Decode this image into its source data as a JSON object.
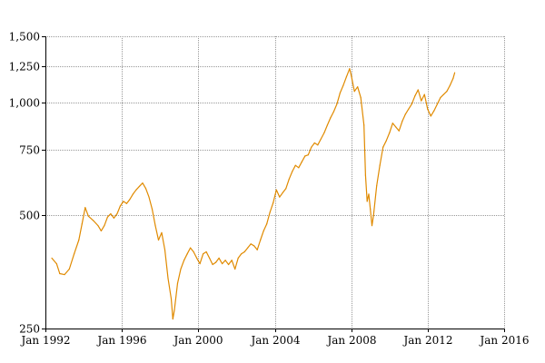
{
  "chart_data": {
    "type": "line",
    "title": "",
    "xlabel": "",
    "ylabel": "",
    "grid": true,
    "legend": "none",
    "y_scale": "log",
    "ylim": [
      250,
      1500
    ],
    "xlim": [
      "1992-01",
      "2016-01"
    ],
    "y_ticks": [
      {
        "value": 250,
        "label": "250"
      },
      {
        "value": 500,
        "label": "500"
      },
      {
        "value": 750,
        "label": "750"
      },
      {
        "value": 1000,
        "label": "1,000"
      },
      {
        "value": 1250,
        "label": "1,250"
      },
      {
        "value": 1500,
        "label": "1,500"
      }
    ],
    "x_ticks": [
      {
        "value": "1992-01",
        "label": "Jan 1992"
      },
      {
        "value": "1996-01",
        "label": "Jan 1996"
      },
      {
        "value": "2000-01",
        "label": "Jan 2000"
      },
      {
        "value": "2004-01",
        "label": "Jan 2004"
      },
      {
        "value": "2008-01",
        "label": "Jan 2008"
      },
      {
        "value": "2012-01",
        "label": "Jan 2012"
      },
      {
        "value": "2016-01",
        "label": "Jan 2016"
      }
    ],
    "series": [
      {
        "color": "#e08a00",
        "points": [
          [
            "1992-05",
            385
          ],
          [
            "1992-08",
            372
          ],
          [
            "1992-10",
            350
          ],
          [
            "1993-01",
            348
          ],
          [
            "1993-04",
            360
          ],
          [
            "1993-07",
            395
          ],
          [
            "1993-10",
            430
          ],
          [
            "1993-12",
            475
          ],
          [
            "1994-02",
            525
          ],
          [
            "1994-04",
            498
          ],
          [
            "1994-07",
            485
          ],
          [
            "1994-10",
            470
          ],
          [
            "1994-12",
            455
          ],
          [
            "1995-02",
            470
          ],
          [
            "1995-04",
            495
          ],
          [
            "1995-06",
            505
          ],
          [
            "1995-08",
            492
          ],
          [
            "1995-10",
            505
          ],
          [
            "1995-12",
            530
          ],
          [
            "1996-02",
            545
          ],
          [
            "1996-04",
            538
          ],
          [
            "1996-06",
            552
          ],
          [
            "1996-08",
            570
          ],
          [
            "1996-10",
            585
          ],
          [
            "1996-12",
            598
          ],
          [
            "1997-02",
            610
          ],
          [
            "1997-04",
            590
          ],
          [
            "1997-06",
            560
          ],
          [
            "1997-08",
            520
          ],
          [
            "1997-10",
            470
          ],
          [
            "1997-12",
            430
          ],
          [
            "1998-02",
            450
          ],
          [
            "1998-04",
            405
          ],
          [
            "1998-06",
            340
          ],
          [
            "1998-08",
            300
          ],
          [
            "1998-09",
            265
          ],
          [
            "1998-10",
            280
          ],
          [
            "1998-12",
            330
          ],
          [
            "1999-02",
            360
          ],
          [
            "1999-04",
            380
          ],
          [
            "1999-06",
            395
          ],
          [
            "1999-08",
            410
          ],
          [
            "1999-10",
            400
          ],
          [
            "1999-12",
            385
          ],
          [
            "2000-02",
            372
          ],
          [
            "2000-04",
            395
          ],
          [
            "2000-06",
            400
          ],
          [
            "2000-08",
            385
          ],
          [
            "2000-10",
            370
          ],
          [
            "2000-12",
            375
          ],
          [
            "2001-02",
            385
          ],
          [
            "2001-04",
            372
          ],
          [
            "2001-06",
            380
          ],
          [
            "2001-08",
            370
          ],
          [
            "2001-10",
            380
          ],
          [
            "2001-12",
            360
          ],
          [
            "2002-02",
            385
          ],
          [
            "2002-04",
            395
          ],
          [
            "2002-06",
            400
          ],
          [
            "2002-08",
            410
          ],
          [
            "2002-10",
            420
          ],
          [
            "2002-12",
            415
          ],
          [
            "2003-02",
            405
          ],
          [
            "2003-04",
            430
          ],
          [
            "2003-06",
            455
          ],
          [
            "2003-08",
            475
          ],
          [
            "2003-10",
            510
          ],
          [
            "2003-12",
            540
          ],
          [
            "2004-02",
            585
          ],
          [
            "2004-04",
            560
          ],
          [
            "2004-06",
            575
          ],
          [
            "2004-08",
            590
          ],
          [
            "2004-10",
            625
          ],
          [
            "2004-12",
            655
          ],
          [
            "2005-02",
            680
          ],
          [
            "2005-04",
            670
          ],
          [
            "2005-06",
            695
          ],
          [
            "2005-08",
            720
          ],
          [
            "2005-10",
            725
          ],
          [
            "2005-12",
            760
          ],
          [
            "2006-02",
            780
          ],
          [
            "2006-04",
            770
          ],
          [
            "2006-06",
            800
          ],
          [
            "2006-08",
            830
          ],
          [
            "2006-10",
            870
          ],
          [
            "2006-12",
            910
          ],
          [
            "2007-02",
            945
          ],
          [
            "2007-04",
            990
          ],
          [
            "2007-06",
            1060
          ],
          [
            "2007-08",
            1110
          ],
          [
            "2007-10",
            1170
          ],
          [
            "2007-12",
            1230
          ],
          [
            "2008-01",
            1180
          ],
          [
            "2008-03",
            1070
          ],
          [
            "2008-05",
            1100
          ],
          [
            "2008-07",
            1030
          ],
          [
            "2008-09",
            870
          ],
          [
            "2008-10",
            640
          ],
          [
            "2008-11",
            545
          ],
          [
            "2008-12",
            570
          ],
          [
            "2009-01",
            520
          ],
          [
            "2009-02",
            470
          ],
          [
            "2009-03",
            500
          ],
          [
            "2009-05",
            600
          ],
          [
            "2009-07",
            680
          ],
          [
            "2009-09",
            760
          ],
          [
            "2009-11",
            790
          ],
          [
            "2010-01",
            830
          ],
          [
            "2010-03",
            880
          ],
          [
            "2010-05",
            860
          ],
          [
            "2010-07",
            840
          ],
          [
            "2010-09",
            890
          ],
          [
            "2010-11",
            930
          ],
          [
            "2011-01",
            960
          ],
          [
            "2011-03",
            990
          ],
          [
            "2011-05",
            1040
          ],
          [
            "2011-07",
            1080
          ],
          [
            "2011-09",
            1010
          ],
          [
            "2011-11",
            1050
          ],
          [
            "2012-01",
            960
          ],
          [
            "2012-03",
            920
          ],
          [
            "2012-05",
            950
          ],
          [
            "2012-07",
            990
          ],
          [
            "2012-09",
            1030
          ],
          [
            "2012-11",
            1050
          ],
          [
            "2013-01",
            1070
          ],
          [
            "2013-03",
            1110
          ],
          [
            "2013-05",
            1160
          ],
          [
            "2013-06",
            1200
          ]
        ]
      }
    ]
  }
}
